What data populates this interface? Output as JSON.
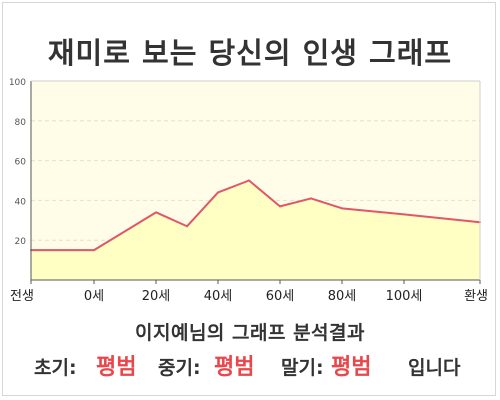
{
  "title": "재미로 보는 당신의 인생 그래프",
  "subtitle": "이지예님의 그래프 분석결과",
  "result": {
    "early_label": "초기:",
    "early_value": "평범",
    "middle_label": "중기:",
    "middle_value": "평범",
    "late_label": "말기:",
    "late_value": "평범",
    "suffix": "입니다"
  },
  "colors": {
    "plot_fill": "#fffde8",
    "area_fill": "#ffffc4",
    "line": "#e0566a",
    "value_highlight": "#e8474b"
  },
  "chart_data": {
    "type": "area",
    "ylim": [
      0,
      100
    ],
    "yticks": [
      20,
      40,
      60,
      80,
      100
    ],
    "categories": [
      "전생",
      "0세",
      "20세",
      "40세",
      "60세",
      "80세",
      "100세",
      "환생"
    ],
    "grid": true,
    "series": [
      {
        "x": [
          "전생",
          "0세",
          "20세",
          "30세",
          "40세",
          "50세",
          "60세",
          "70세",
          "80세",
          "100세",
          "환생"
        ],
        "values": [
          15,
          15,
          34,
          27,
          44,
          50,
          37,
          41,
          36,
          33,
          29
        ]
      }
    ]
  }
}
